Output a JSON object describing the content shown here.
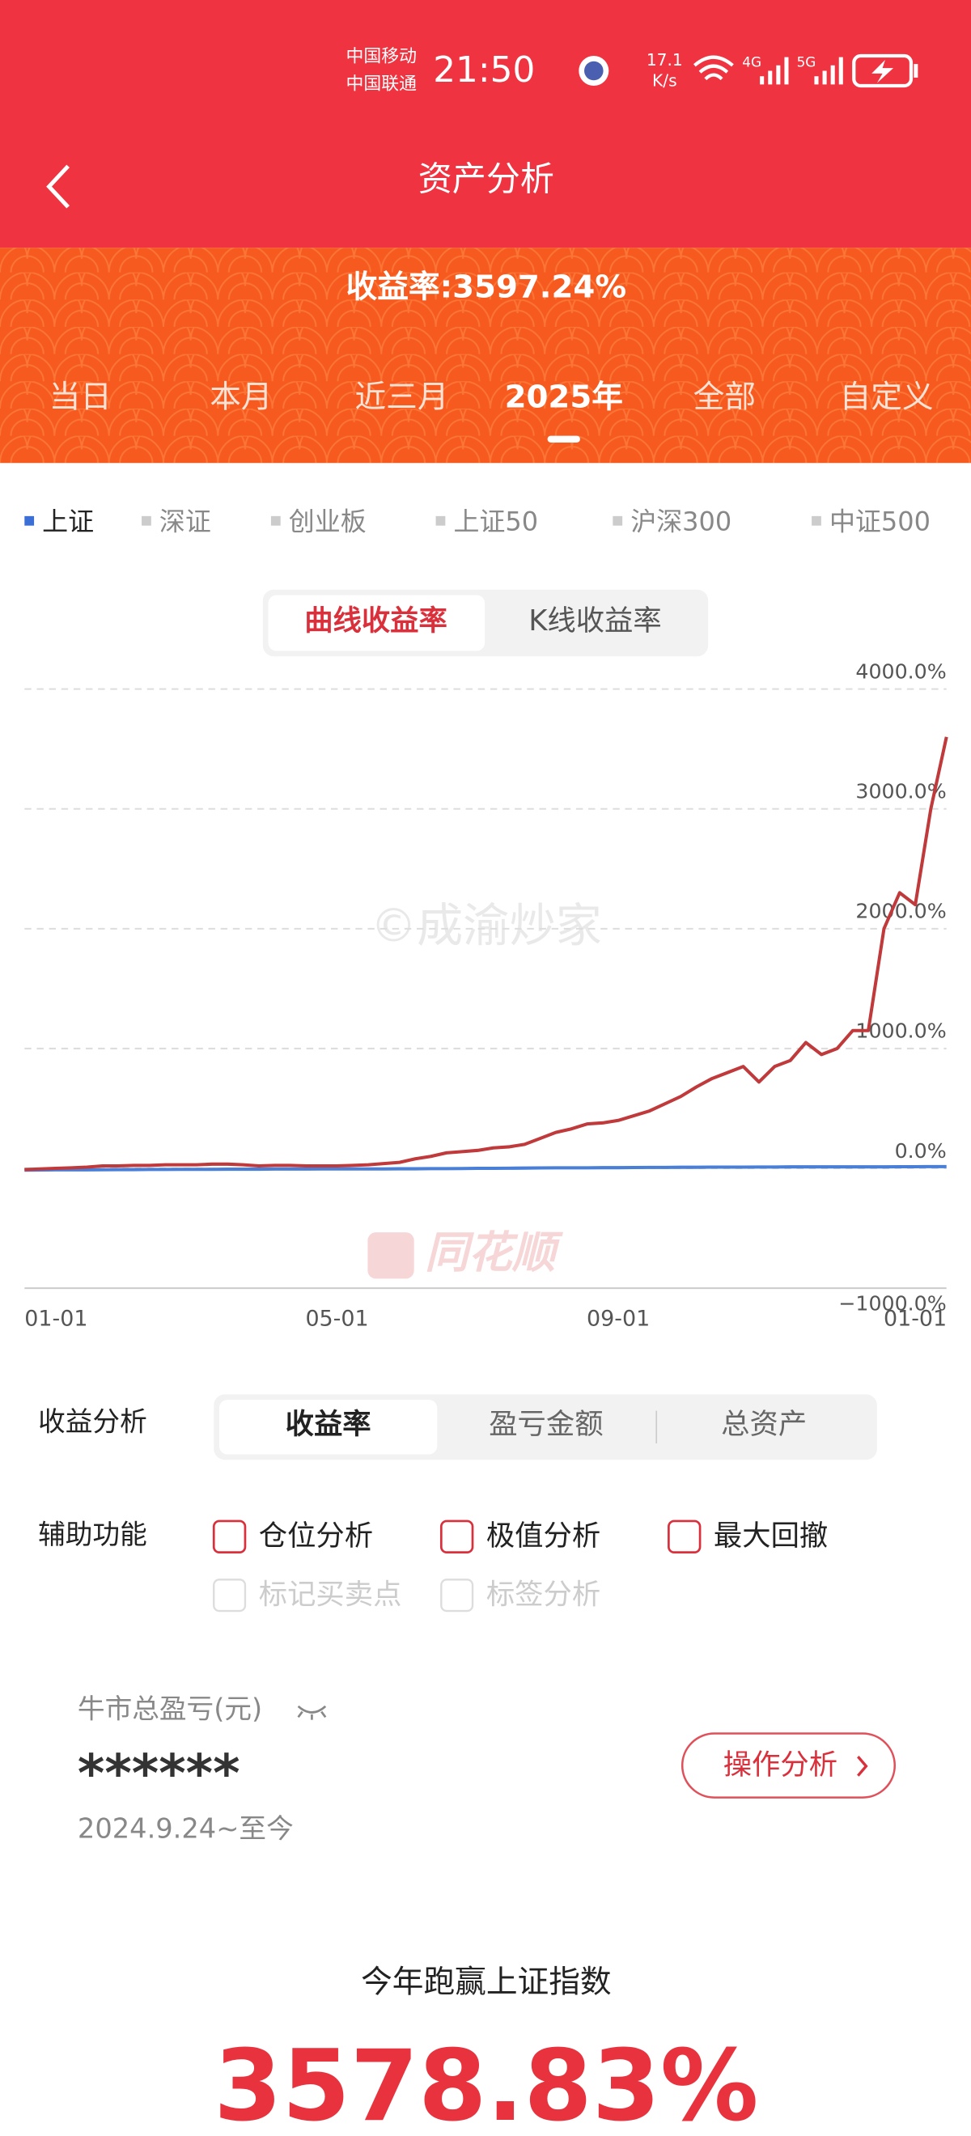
{
  "status_bar": {
    "carrier_1": "中国移动",
    "carrier_2": "中国联通",
    "time": "21:50",
    "speed_value": "17.1",
    "speed_unit": "K/s",
    "net_1": "4G",
    "net_2": "5G"
  },
  "header": {
    "title": "资产分析"
  },
  "summary": {
    "return_text": "收益率:3597.24%"
  },
  "period_tabs": {
    "items": [
      "当日",
      "本月",
      "近三月",
      "2025年",
      "全部",
      "自定义"
    ],
    "active": 3
  },
  "index_selector": {
    "items": [
      "上证",
      "深证",
      "创业板",
      "上证50",
      "沪深300",
      "中证500"
    ],
    "active": 0,
    "active_color": "#3b6fd6"
  },
  "view_toggle": {
    "items": [
      "曲线收益率",
      "K线收益率"
    ],
    "active": 0
  },
  "chart_data": {
    "type": "line",
    "categories": [
      "01-01",
      null,
      null,
      null,
      null,
      null,
      null,
      null,
      null,
      null,
      null,
      null,
      null,
      null,
      null,
      null,
      null,
      null,
      null,
      null,
      "05-01",
      null,
      null,
      null,
      null,
      null,
      null,
      null,
      null,
      null,
      null,
      null,
      null,
      null,
      null,
      null,
      null,
      null,
      "09-01",
      null,
      null,
      null,
      null,
      null,
      null,
      null,
      null,
      null,
      null,
      null,
      null,
      null,
      null,
      null,
      null,
      null,
      null,
      "01-01",
      null,
      null
    ],
    "series": [
      {
        "color": "#c0393b",
        "values": [
          -10,
          -5,
          0,
          5,
          10,
          20,
          20,
          25,
          25,
          30,
          30,
          30,
          35,
          35,
          30,
          20,
          25,
          25,
          20,
          20,
          20,
          25,
          30,
          40,
          50,
          80,
          100,
          130,
          140,
          150,
          170,
          180,
          200,
          250,
          300,
          330,
          370,
          380,
          400,
          440,
          480,
          540,
          600,
          680,
          750,
          800,
          850,
          720,
          850,
          900,
          1050,
          950,
          1000,
          1150,
          1150,
          2000,
          2300,
          2200,
          3000,
          3600
        ]
      },
      {
        "color": "#4a7fd8",
        "values": [
          -15,
          -14,
          -13,
          -12,
          -12,
          -11,
          -10,
          -10,
          -9,
          -9,
          -8,
          -8,
          -8,
          -7,
          -7,
          -7,
          -6,
          -6,
          -6,
          -5,
          -5,
          -5,
          -4,
          -4,
          -3,
          -3,
          -2,
          -2,
          -1,
          0,
          0,
          1,
          2,
          3,
          4,
          5,
          5,
          6,
          6,
          7,
          8,
          8,
          9,
          9,
          10,
          10,
          10,
          11,
          11,
          12,
          12,
          12,
          12,
          13,
          13,
          13,
          14,
          14,
          15,
          15
        ]
      }
    ],
    "ylim": [
      -1000,
      4000
    ],
    "yticks": [
      {
        "value": -1000,
        "label": "−1000.0%"
      },
      {
        "value": 0,
        "label": "0.0%"
      },
      {
        "value": 1000,
        "label": "1000.0%"
      },
      {
        "value": 2000,
        "label": "2000.0%"
      },
      {
        "value": 3000,
        "label": "3000.0%"
      },
      {
        "value": 4000,
        "label": "4000.0%"
      }
    ],
    "grid": true,
    "annotations": [
      "©成渝炒家",
      "同花顺"
    ]
  },
  "analysis": {
    "label": "收益分析",
    "items": [
      "收益率",
      "盈亏金额",
      "总资产"
    ],
    "active": 0
  },
  "aux": {
    "label": "辅助功能",
    "items": [
      "仓位分析",
      "极值分析",
      "最大回撤"
    ],
    "disabled_items": [
      "标记买卖点",
      "标签分析"
    ]
  },
  "pnl": {
    "label": "牛市总盈亏(元)",
    "value": "******",
    "period": "2024.9.24~至今",
    "button": "操作分析"
  },
  "outperform": {
    "label": "今年跑赢上证指数",
    "value": "3578.83%"
  }
}
